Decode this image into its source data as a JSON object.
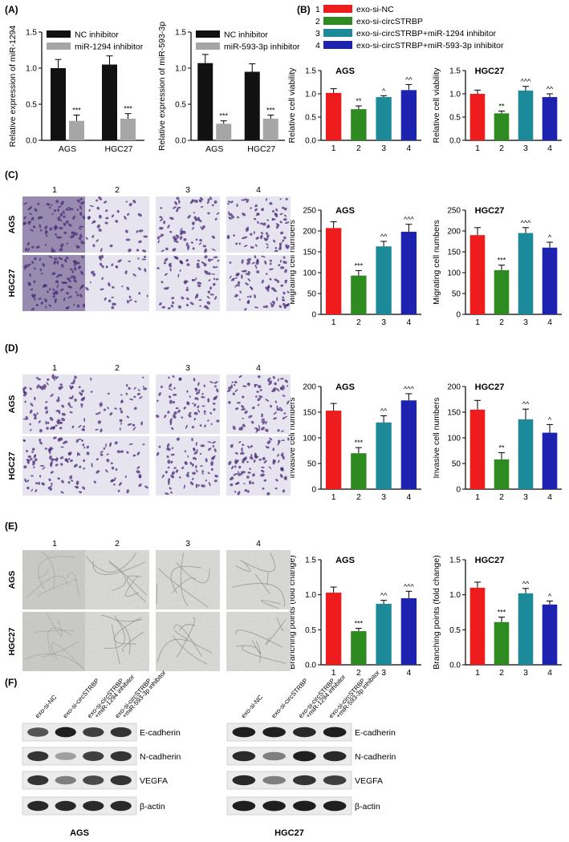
{
  "panels": {
    "A": "(A)",
    "B": "(B)",
    "C": "(C)",
    "D": "(D)",
    "E": "(E)",
    "F": "(F)"
  },
  "colors": {
    "g1": "#ee1c1c",
    "g2": "#2e8b1f",
    "g3": "#1d8a9a",
    "g4": "#1e22b0",
    "nc": "#111111",
    "inh": "#a6a6a6"
  },
  "legend_b": {
    "numbers": [
      "1",
      "2",
      "3",
      "4"
    ],
    "labels": [
      "exo-si-NC",
      "exo-si-circSTRBP",
      "exo-si-circSTRBP+miR-1294 inhibitor",
      "exo-si-circSTRBP+miR-593-3p inhibitor"
    ]
  },
  "micro": {
    "columns": [
      "1",
      "2",
      "3",
      "4"
    ],
    "rows": [
      "AGS",
      "HGC27"
    ]
  },
  "western": {
    "lane_labels": [
      "exo-si-NC",
      "exo-si-circSTRBP",
      "exo-si-circSTRBP",
      "+miR-1294 inhibitor",
      "exo-si-circSTRBP",
      "+miR-593-3p inhibitor"
    ],
    "proteins": [
      "E-cadherin",
      "N-cadherin",
      "VEGFA",
      "β-actin"
    ],
    "cells": [
      "AGS",
      "HGC27"
    ]
  },
  "chart_data": [
    {
      "id": "A1",
      "type": "bar",
      "ylabel": "Relative expression of miR-1294",
      "categories": [
        "AGS",
        "HGC27"
      ],
      "ylim": [
        0,
        1.5
      ],
      "yticks": [
        "0.0",
        "0.5",
        "1.0",
        "1.5"
      ],
      "ytick_values": [
        0,
        0.5,
        1.0,
        1.5
      ],
      "series": [
        {
          "name": "NC inhibitor",
          "values": [
            1.0,
            1.05
          ],
          "errors": [
            0.12,
            0.12
          ],
          "marks": [
            "",
            ""
          ]
        },
        {
          "name": "miR-1294 inhibitor",
          "values": [
            0.27,
            0.3
          ],
          "errors": [
            0.08,
            0.07
          ],
          "marks": [
            "***",
            "***"
          ]
        }
      ]
    },
    {
      "id": "A2",
      "type": "bar",
      "ylabel": "Relative expression of miR-593-3p",
      "categories": [
        "AGS",
        "HGC27"
      ],
      "ylim": [
        0,
        1.5
      ],
      "yticks": [
        "0.0",
        "0.5",
        "1.0",
        "1.5"
      ],
      "ytick_values": [
        0,
        0.5,
        1.0,
        1.5
      ],
      "series": [
        {
          "name": "NC inhibitor",
          "values": [
            1.07,
            0.95
          ],
          "errors": [
            0.12,
            0.11
          ],
          "marks": [
            "",
            ""
          ]
        },
        {
          "name": "miR-593-3p inhibitor",
          "values": [
            0.23,
            0.3
          ],
          "errors": [
            0.04,
            0.05
          ],
          "marks": [
            "***",
            "***"
          ]
        }
      ]
    },
    {
      "id": "B1",
      "type": "bar",
      "title": "AGS",
      "ylabel": "Relative cell viability",
      "categories": [
        "1",
        "2",
        "3",
        "4"
      ],
      "ylim": [
        0,
        1.5
      ],
      "yticks": [
        "0.0",
        "0.5",
        "1.0",
        "1.5"
      ],
      "ytick_values": [
        0,
        0.5,
        1.0,
        1.5
      ],
      "values": [
        1.02,
        0.67,
        0.93,
        1.08
      ],
      "errors": [
        0.09,
        0.07,
        0.03,
        0.12
      ],
      "marks": [
        "",
        "**",
        "^",
        "^^"
      ]
    },
    {
      "id": "B2",
      "type": "bar",
      "title": "HGC27",
      "ylabel": "Relative cell viability",
      "categories": [
        "1",
        "2",
        "3",
        "4"
      ],
      "ylim": [
        0,
        1.5
      ],
      "yticks": [
        "0.0",
        "0.5",
        "1.0",
        "1.5"
      ],
      "ytick_values": [
        0,
        0.5,
        1.0,
        1.5
      ],
      "values": [
        1.0,
        0.58,
        1.07,
        0.93
      ],
      "errors": [
        0.08,
        0.05,
        0.09,
        0.07
      ],
      "marks": [
        "",
        "**",
        "^^^",
        "^^"
      ]
    },
    {
      "id": "C1",
      "type": "bar",
      "title": "AGS",
      "ylabel": "Migrating cell numbers",
      "categories": [
        "1",
        "2",
        "3",
        "4"
      ],
      "ylim": [
        0,
        250
      ],
      "yticks": [
        "0",
        "50",
        "100",
        "150",
        "200",
        "250"
      ],
      "ytick_values": [
        0,
        50,
        100,
        150,
        200,
        250
      ],
      "values": [
        207,
        93,
        163,
        198
      ],
      "errors": [
        15,
        12,
        12,
        18
      ],
      "marks": [
        "",
        "***",
        "^^",
        "^^^"
      ]
    },
    {
      "id": "C2",
      "type": "bar",
      "title": "HGC27",
      "ylabel": "Migrating cell numbers",
      "categories": [
        "1",
        "2",
        "3",
        "4"
      ],
      "ylim": [
        0,
        250
      ],
      "yticks": [
        "0",
        "50",
        "100",
        "150",
        "200",
        "250"
      ],
      "ytick_values": [
        0,
        50,
        100,
        150,
        200,
        250
      ],
      "values": [
        190,
        106,
        195,
        160
      ],
      "errors": [
        18,
        12,
        13,
        13
      ],
      "marks": [
        "",
        "***",
        "^^^",
        "^"
      ]
    },
    {
      "id": "D1",
      "type": "bar",
      "title": "AGS",
      "ylabel": "Invasive cell numbers",
      "categories": [
        "1",
        "2",
        "3",
        "4"
      ],
      "ylim": [
        0,
        200
      ],
      "yticks": [
        "0",
        "50",
        "100",
        "150",
        "200"
      ],
      "ytick_values": [
        0,
        50,
        100,
        150,
        200
      ],
      "values": [
        153,
        70,
        130,
        173
      ],
      "errors": [
        14,
        11,
        13,
        13
      ],
      "marks": [
        "",
        "***",
        "^^",
        "^^^"
      ]
    },
    {
      "id": "D2",
      "type": "bar",
      "title": "HGC27",
      "ylabel": "Invasive cell numbers",
      "categories": [
        "1",
        "2",
        "3",
        "4"
      ],
      "ylim": [
        0,
        200
      ],
      "yticks": [
        "0",
        "50",
        "100",
        "150",
        "200"
      ],
      "ytick_values": [
        0,
        50,
        100,
        150,
        200
      ],
      "values": [
        155,
        58,
        136,
        110
      ],
      "errors": [
        18,
        13,
        20,
        16
      ],
      "marks": [
        "",
        "**",
        "^^",
        "^"
      ]
    },
    {
      "id": "E1",
      "type": "bar",
      "title": "AGS",
      "ylabel": "Branching points (fold change)",
      "categories": [
        "1",
        "2",
        "3",
        "4"
      ],
      "ylim": [
        0,
        1.5
      ],
      "yticks": [
        "0.0",
        "0.5",
        "1.0",
        "1.5"
      ],
      "ytick_values": [
        0,
        0.5,
        1.0,
        1.5
      ],
      "values": [
        1.03,
        0.48,
        0.87,
        0.95
      ],
      "errors": [
        0.08,
        0.04,
        0.05,
        0.1
      ],
      "marks": [
        "",
        "***",
        "^^",
        "^^^"
      ]
    },
    {
      "id": "E2",
      "type": "bar",
      "title": "HGC27",
      "ylabel": "Branching points (fold change)",
      "categories": [
        "1",
        "2",
        "3",
        "4"
      ],
      "ylim": [
        0,
        1.5
      ],
      "yticks": [
        "0.0",
        "0.5",
        "1.0",
        "1.5"
      ],
      "ytick_values": [
        0,
        0.5,
        1.0,
        1.5
      ],
      "values": [
        1.1,
        0.61,
        1.02,
        0.86
      ],
      "errors": [
        0.08,
        0.07,
        0.07,
        0.05
      ],
      "marks": [
        "",
        "***",
        "^^",
        "^"
      ]
    }
  ]
}
